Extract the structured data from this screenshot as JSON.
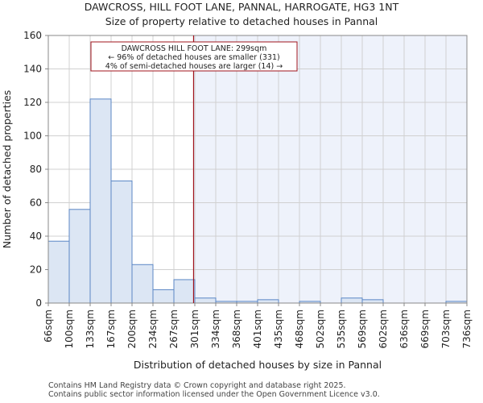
{
  "title": "DAWCROSS, HILL FOOT LANE, PANNAL, HARROGATE, HG3 1NT",
  "subtitle": "Size of property relative to detached houses in Pannal",
  "footer": {
    "line1": "Contains HM Land Registry data © Crown copyright and database right 2025.",
    "line2": "Contains public sector information licensed under the Open Government Licence v3.0."
  },
  "colors": {
    "bar_fill": "#dce6f4",
    "bar_stroke": "#5b87c5",
    "highlight_bg": "#eef2fb",
    "marker_line": "#a0141e",
    "grid": "#d0d0d0"
  },
  "chart_data": {
    "type": "histogram",
    "title": "DAWCROSS, HILL FOOT LANE, PANNAL, HARROGATE, HG3 1NT",
    "subtitle": "Size of property relative to detached houses in Pannal",
    "xlabel": "Distribution of detached houses by size in Pannal",
    "ylabel": "Number of detached properties",
    "ylim": [
      0,
      160
    ],
    "yticks": [
      0,
      20,
      40,
      60,
      80,
      100,
      120,
      140,
      160
    ],
    "bin_edges": [
      66,
      100,
      133,
      167,
      200,
      234,
      267,
      301,
      334,
      368,
      401,
      435,
      468,
      502,
      535,
      569,
      602,
      636,
      669,
      703,
      736
    ],
    "tick_labels": [
      "66sqm",
      "100sqm",
      "133sqm",
      "167sqm",
      "200sqm",
      "234sqm",
      "267sqm",
      "301sqm",
      "334sqm",
      "368sqm",
      "401sqm",
      "435sqm",
      "468sqm",
      "502sqm",
      "535sqm",
      "569sqm",
      "602sqm",
      "636sqm",
      "669sqm",
      "703sqm",
      "736sqm"
    ],
    "values": [
      37,
      56,
      122,
      73,
      23,
      8,
      14,
      3,
      1,
      1,
      2,
      0,
      1,
      0,
      3,
      2,
      0,
      0,
      0,
      1
    ],
    "marker": {
      "value": 299,
      "label": "DAWCROSS HILL FOOT LANE: 299sqm"
    },
    "annotation": [
      "DAWCROSS HILL FOOT LANE: 299sqm",
      "← 96% of detached houses are smaller (331)",
      "4% of semi-detached houses are larger (14) →"
    ]
  }
}
